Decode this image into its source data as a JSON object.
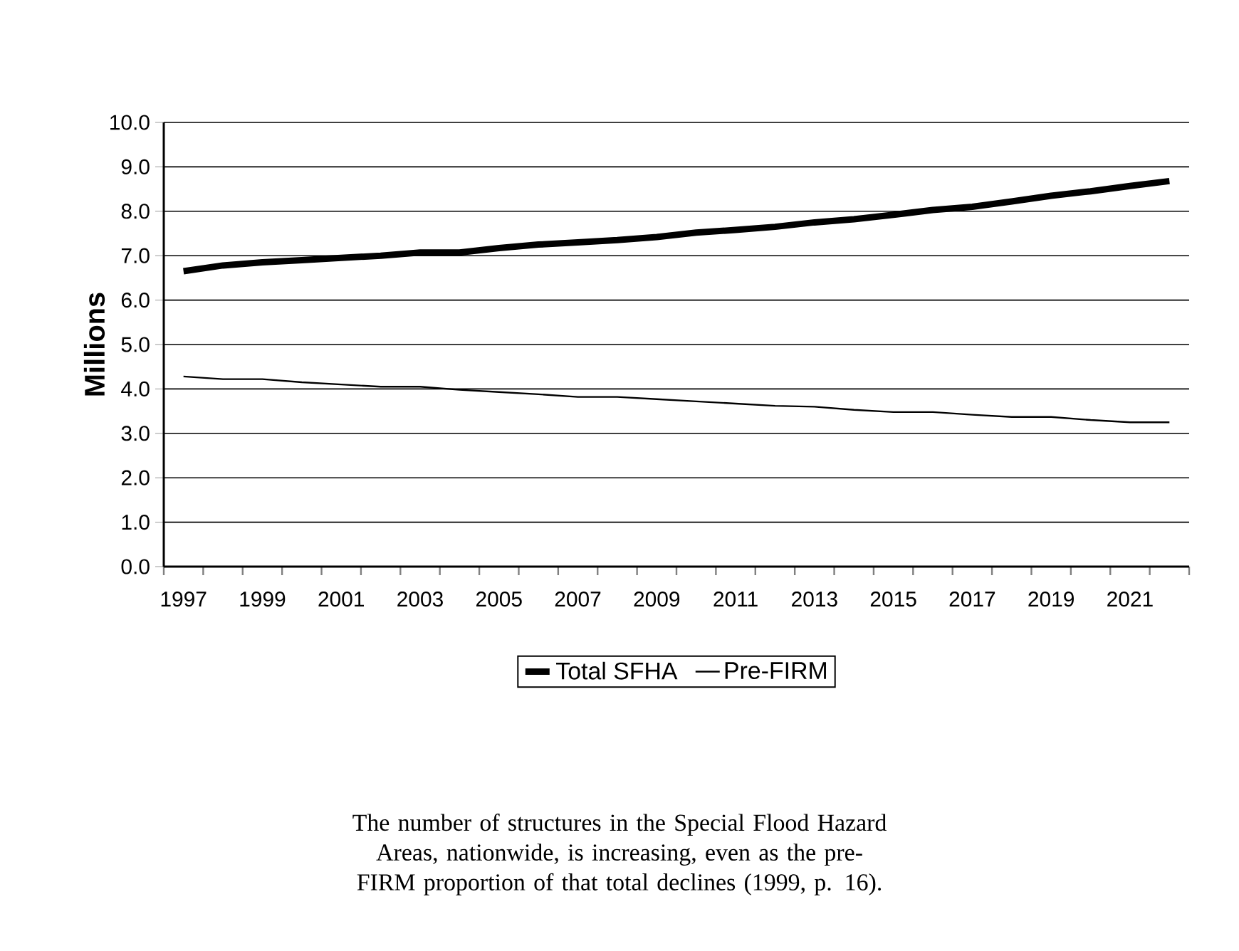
{
  "chart_data": {
    "type": "line",
    "ylabel": "Millions",
    "categories": [
      "1997",
      null,
      "1999",
      null,
      "2001",
      null,
      "2003",
      null,
      "2005",
      null,
      "2007",
      null,
      "2009",
      null,
      "2011",
      null,
      "2013",
      null,
      "2015",
      null,
      "2017",
      null,
      "2019",
      null,
      "2021",
      null
    ],
    "series": [
      {
        "name": "Total SFHA",
        "color": "#000000",
        "values": [
          6.65,
          6.78,
          6.85,
          6.9,
          6.95,
          7.0,
          7.07,
          7.07,
          7.17,
          7.25,
          7.3,
          7.35,
          7.42,
          7.52,
          7.58,
          7.65,
          7.75,
          7.82,
          7.92,
          8.03,
          8.1,
          8.22,
          8.35,
          8.45,
          8.57,
          8.68
        ]
      },
      {
        "name": "Pre-FIRM",
        "color": "#000000",
        "values": [
          4.28,
          4.22,
          4.22,
          4.15,
          4.1,
          4.05,
          4.05,
          3.98,
          3.93,
          3.88,
          3.82,
          3.82,
          3.77,
          3.72,
          3.67,
          3.62,
          3.6,
          3.53,
          3.48,
          3.48,
          3.42,
          3.37,
          3.37,
          3.3,
          3.25,
          3.25
        ]
      }
    ],
    "ylim": [
      0,
      10
    ],
    "yticks": [
      {
        "value": 0,
        "label": "0.0"
      },
      {
        "value": 1,
        "label": "1.0"
      },
      {
        "value": 2,
        "label": "2.0"
      },
      {
        "value": 3,
        "label": "3.0"
      },
      {
        "value": 4,
        "label": "4.0"
      },
      {
        "value": 5,
        "label": "5.0"
      },
      {
        "value": 6,
        "label": "6.0"
      },
      {
        "value": 7,
        "label": "7.0"
      },
      {
        "value": 8,
        "label": "8.0"
      },
      {
        "value": 9,
        "label": "9.0"
      },
      {
        "value": 10,
        "label": "10.0"
      }
    ],
    "grid": "y",
    "legend": "bottom",
    "marker": "none",
    "line_style": "solid",
    "annotations": [
      "The number of structures in the Special Flood Hazard Areas, nationwide, is increasing, even as the pre-FIRM proportion of that total declines (1999, p. 16)."
    ]
  }
}
